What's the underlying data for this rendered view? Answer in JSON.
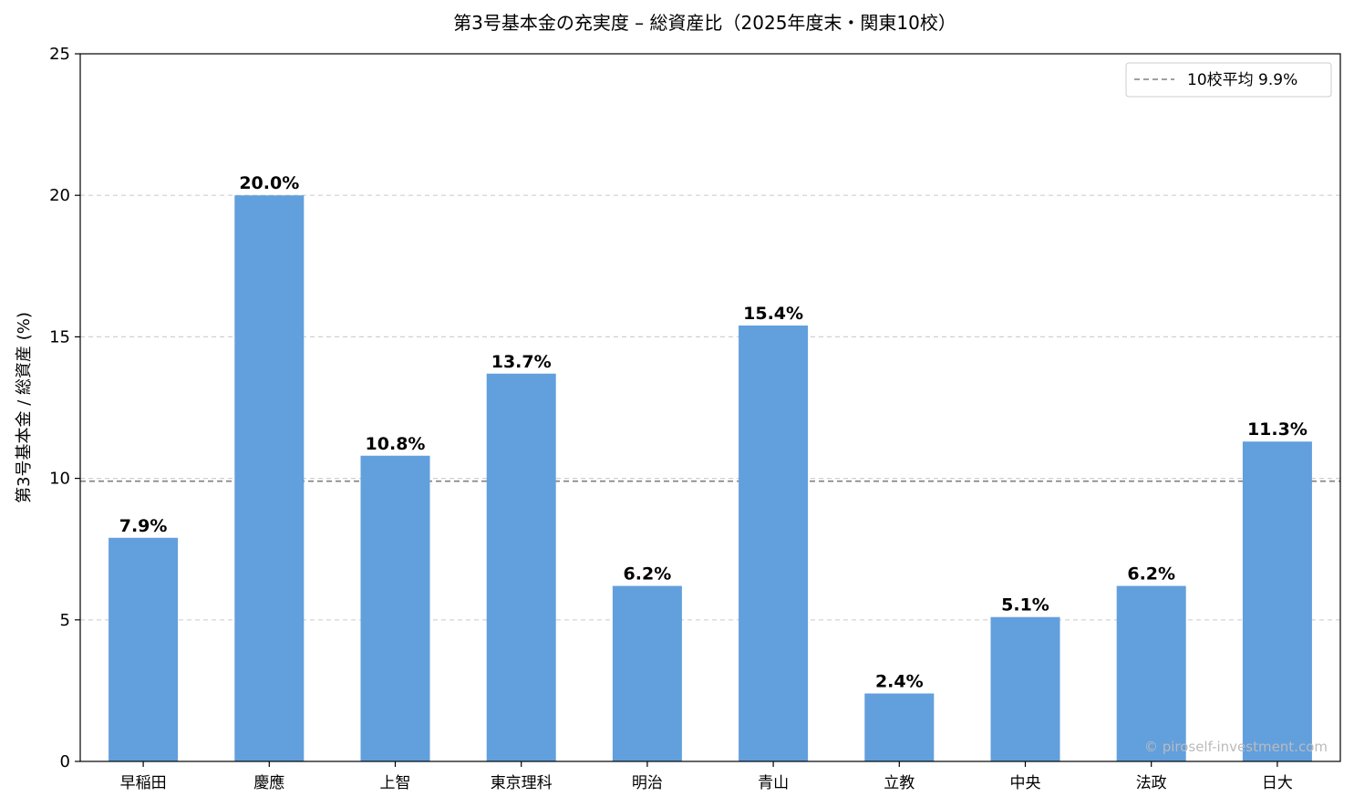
{
  "chart_data": {
    "type": "bar",
    "title": "第3号基本金の充実度 – 総資産比（2025年度末・関東10校）",
    "xlabel": "",
    "ylabel": "第3号基本金 / 総資産 (%)",
    "categories": [
      "早稲田",
      "慶應",
      "上智",
      "東京理科",
      "明治",
      "青山",
      "立教",
      "中央",
      "法政",
      "日大"
    ],
    "values": [
      7.9,
      20.0,
      10.8,
      13.7,
      6.2,
      15.4,
      2.4,
      5.1,
      6.2,
      11.3
    ],
    "value_labels": [
      "7.9%",
      "20.0%",
      "10.8%",
      "13.7%",
      "6.2%",
      "15.4%",
      "2.4%",
      "5.1%",
      "6.2%",
      "11.3%"
    ],
    "ylim": [
      0,
      25
    ],
    "yticks": [
      0,
      5,
      10,
      15,
      20,
      25
    ],
    "grid": "horizontal dashed",
    "bar_color": "#629fdd",
    "average": {
      "value": 9.9,
      "label": "10校平均 9.9%",
      "color": "#808080"
    },
    "legend_placement": "top-right",
    "watermark": "© piroself-investment.com"
  }
}
